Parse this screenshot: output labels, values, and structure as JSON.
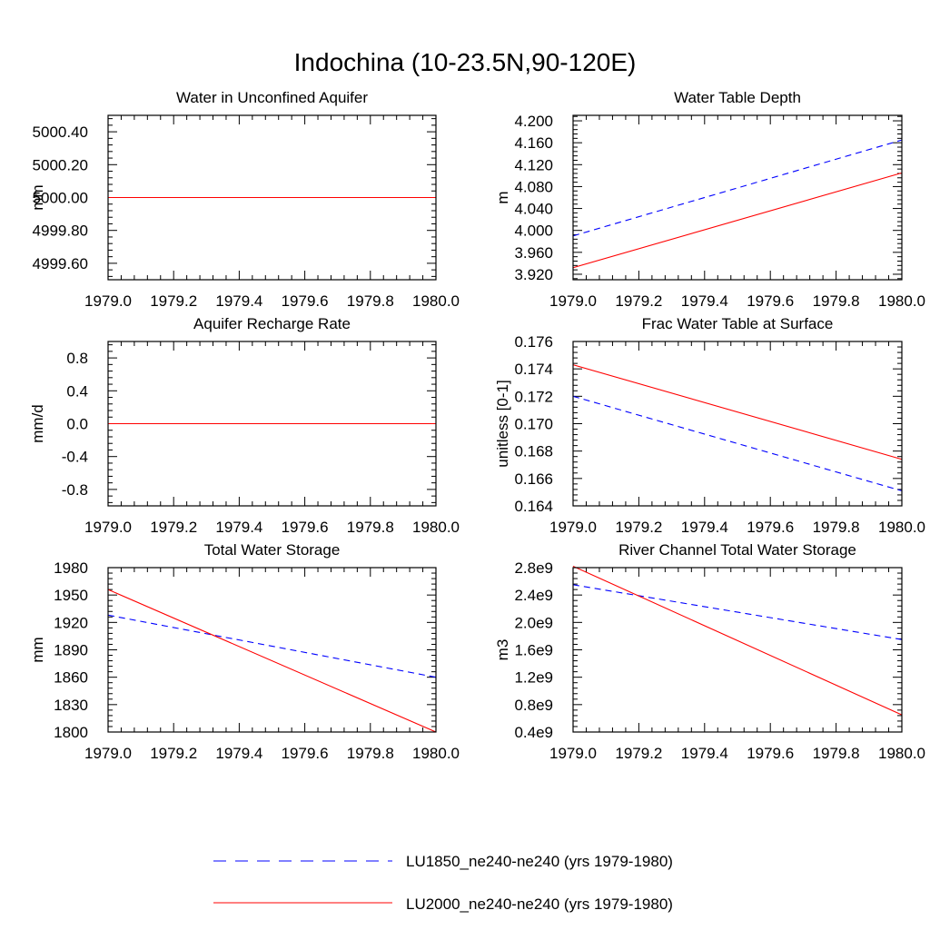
{
  "title": "Indochina (10-23.5N,90-120E)",
  "colors": {
    "LU1850": "#0000ff",
    "LU2000": "#ff0000"
  },
  "legend": [
    {
      "key": "LU1850",
      "label": "LU1850_ne240-ne240 (yrs 1979-1980)",
      "dash": "dashed"
    },
    {
      "key": "LU2000",
      "label": "LU2000_ne240-ne240 (yrs 1979-1980)",
      "dash": "solid"
    }
  ],
  "chart_data": [
    {
      "type": "line",
      "title": "Water in Unconfined Aquifer",
      "ylabel": "mm",
      "x": [
        1979.0,
        1980.0
      ],
      "xlim": [
        1979.0,
        1980.0
      ],
      "xticks": [
        "1979.0",
        "1979.2",
        "1979.4",
        "1979.6",
        "1979.8",
        "1980.0"
      ],
      "ylim": [
        4999.5,
        5000.5
      ],
      "yticks": [
        "4999.60",
        "4999.80",
        "5000.00",
        "5000.20",
        "5000.40"
      ],
      "series": [
        {
          "key": "LU1850",
          "values": [
            5000.0,
            5000.0
          ]
        },
        {
          "key": "LU2000",
          "values": [
            5000.0,
            5000.0
          ]
        }
      ]
    },
    {
      "type": "line",
      "title": "Water Table Depth",
      "ylabel": "m",
      "x": [
        1979.0,
        1980.0
      ],
      "xlim": [
        1979.0,
        1980.0
      ],
      "xticks": [
        "1979.0",
        "1979.2",
        "1979.4",
        "1979.6",
        "1979.8",
        "1980.0"
      ],
      "ylim": [
        3.91,
        4.21
      ],
      "yticks": [
        "3.920",
        "3.960",
        "4.000",
        "4.040",
        "4.080",
        "4.120",
        "4.160",
        "4.200"
      ],
      "series": [
        {
          "key": "LU1850",
          "values": [
            3.99,
            4.165
          ]
        },
        {
          "key": "LU2000",
          "values": [
            3.932,
            4.105
          ]
        }
      ]
    },
    {
      "type": "line",
      "title": "Aquifer Recharge Rate",
      "ylabel": "mm/d",
      "x": [
        1979.0,
        1980.0
      ],
      "xlim": [
        1979.0,
        1980.0
      ],
      "xticks": [
        "1979.0",
        "1979.2",
        "1979.4",
        "1979.6",
        "1979.8",
        "1980.0"
      ],
      "ylim": [
        -1.0,
        1.0
      ],
      "yticks": [
        "-0.8",
        "-0.4",
        "0.0",
        "0.4",
        "0.8"
      ],
      "series": [
        {
          "key": "LU1850",
          "values": [
            0.0,
            0.0
          ]
        },
        {
          "key": "LU2000",
          "values": [
            0.0,
            0.0
          ]
        }
      ]
    },
    {
      "type": "line",
      "title": "Frac Water Table at Surface",
      "ylabel": "unitless [0-1]",
      "x": [
        1979.0,
        1980.0
      ],
      "xlim": [
        1979.0,
        1980.0
      ],
      "xticks": [
        "1979.0",
        "1979.2",
        "1979.4",
        "1979.6",
        "1979.8",
        "1980.0"
      ],
      "ylim": [
        0.164,
        0.176
      ],
      "yticks": [
        "0.164",
        "0.166",
        "0.168",
        "0.170",
        "0.172",
        "0.174",
        "0.176"
      ],
      "series": [
        {
          "key": "LU1850",
          "values": [
            0.172,
            0.1651
          ]
        },
        {
          "key": "LU2000",
          "values": [
            0.1743,
            0.1674
          ]
        }
      ]
    },
    {
      "type": "line",
      "title": "Total Water Storage",
      "ylabel": "mm",
      "x": [
        1979.0,
        1980.0
      ],
      "xlim": [
        1979.0,
        1980.0
      ],
      "xticks": [
        "1979.0",
        "1979.2",
        "1979.4",
        "1979.6",
        "1979.8",
        "1980.0"
      ],
      "ylim": [
        1800,
        1980
      ],
      "yticks": [
        "1800",
        "1830",
        "1860",
        "1890",
        "1920",
        "1950",
        "1980"
      ],
      "series": [
        {
          "key": "LU1850",
          "values": [
            1928,
            1860
          ]
        },
        {
          "key": "LU2000",
          "values": [
            1956,
            1800
          ]
        }
      ]
    },
    {
      "type": "line",
      "title": "River Channel Total Water Storage",
      "ylabel": "m3",
      "x": [
        1979.0,
        1980.0
      ],
      "xlim": [
        1979.0,
        1980.0
      ],
      "xticks": [
        "1979.0",
        "1979.2",
        "1979.4",
        "1979.6",
        "1979.8",
        "1980.0"
      ],
      "ylim": [
        400000000.0,
        2800000000.0
      ],
      "yticks": [
        "0.4e9",
        "0.8e9",
        "1.2e9",
        "1.6e9",
        "2.0e9",
        "2.4e9",
        "2.8e9"
      ],
      "series": [
        {
          "key": "LU1850",
          "values": [
            2550000000.0,
            1750000000.0
          ]
        },
        {
          "key": "LU2000",
          "values": [
            2820000000.0,
            650000000.0
          ]
        }
      ]
    }
  ]
}
